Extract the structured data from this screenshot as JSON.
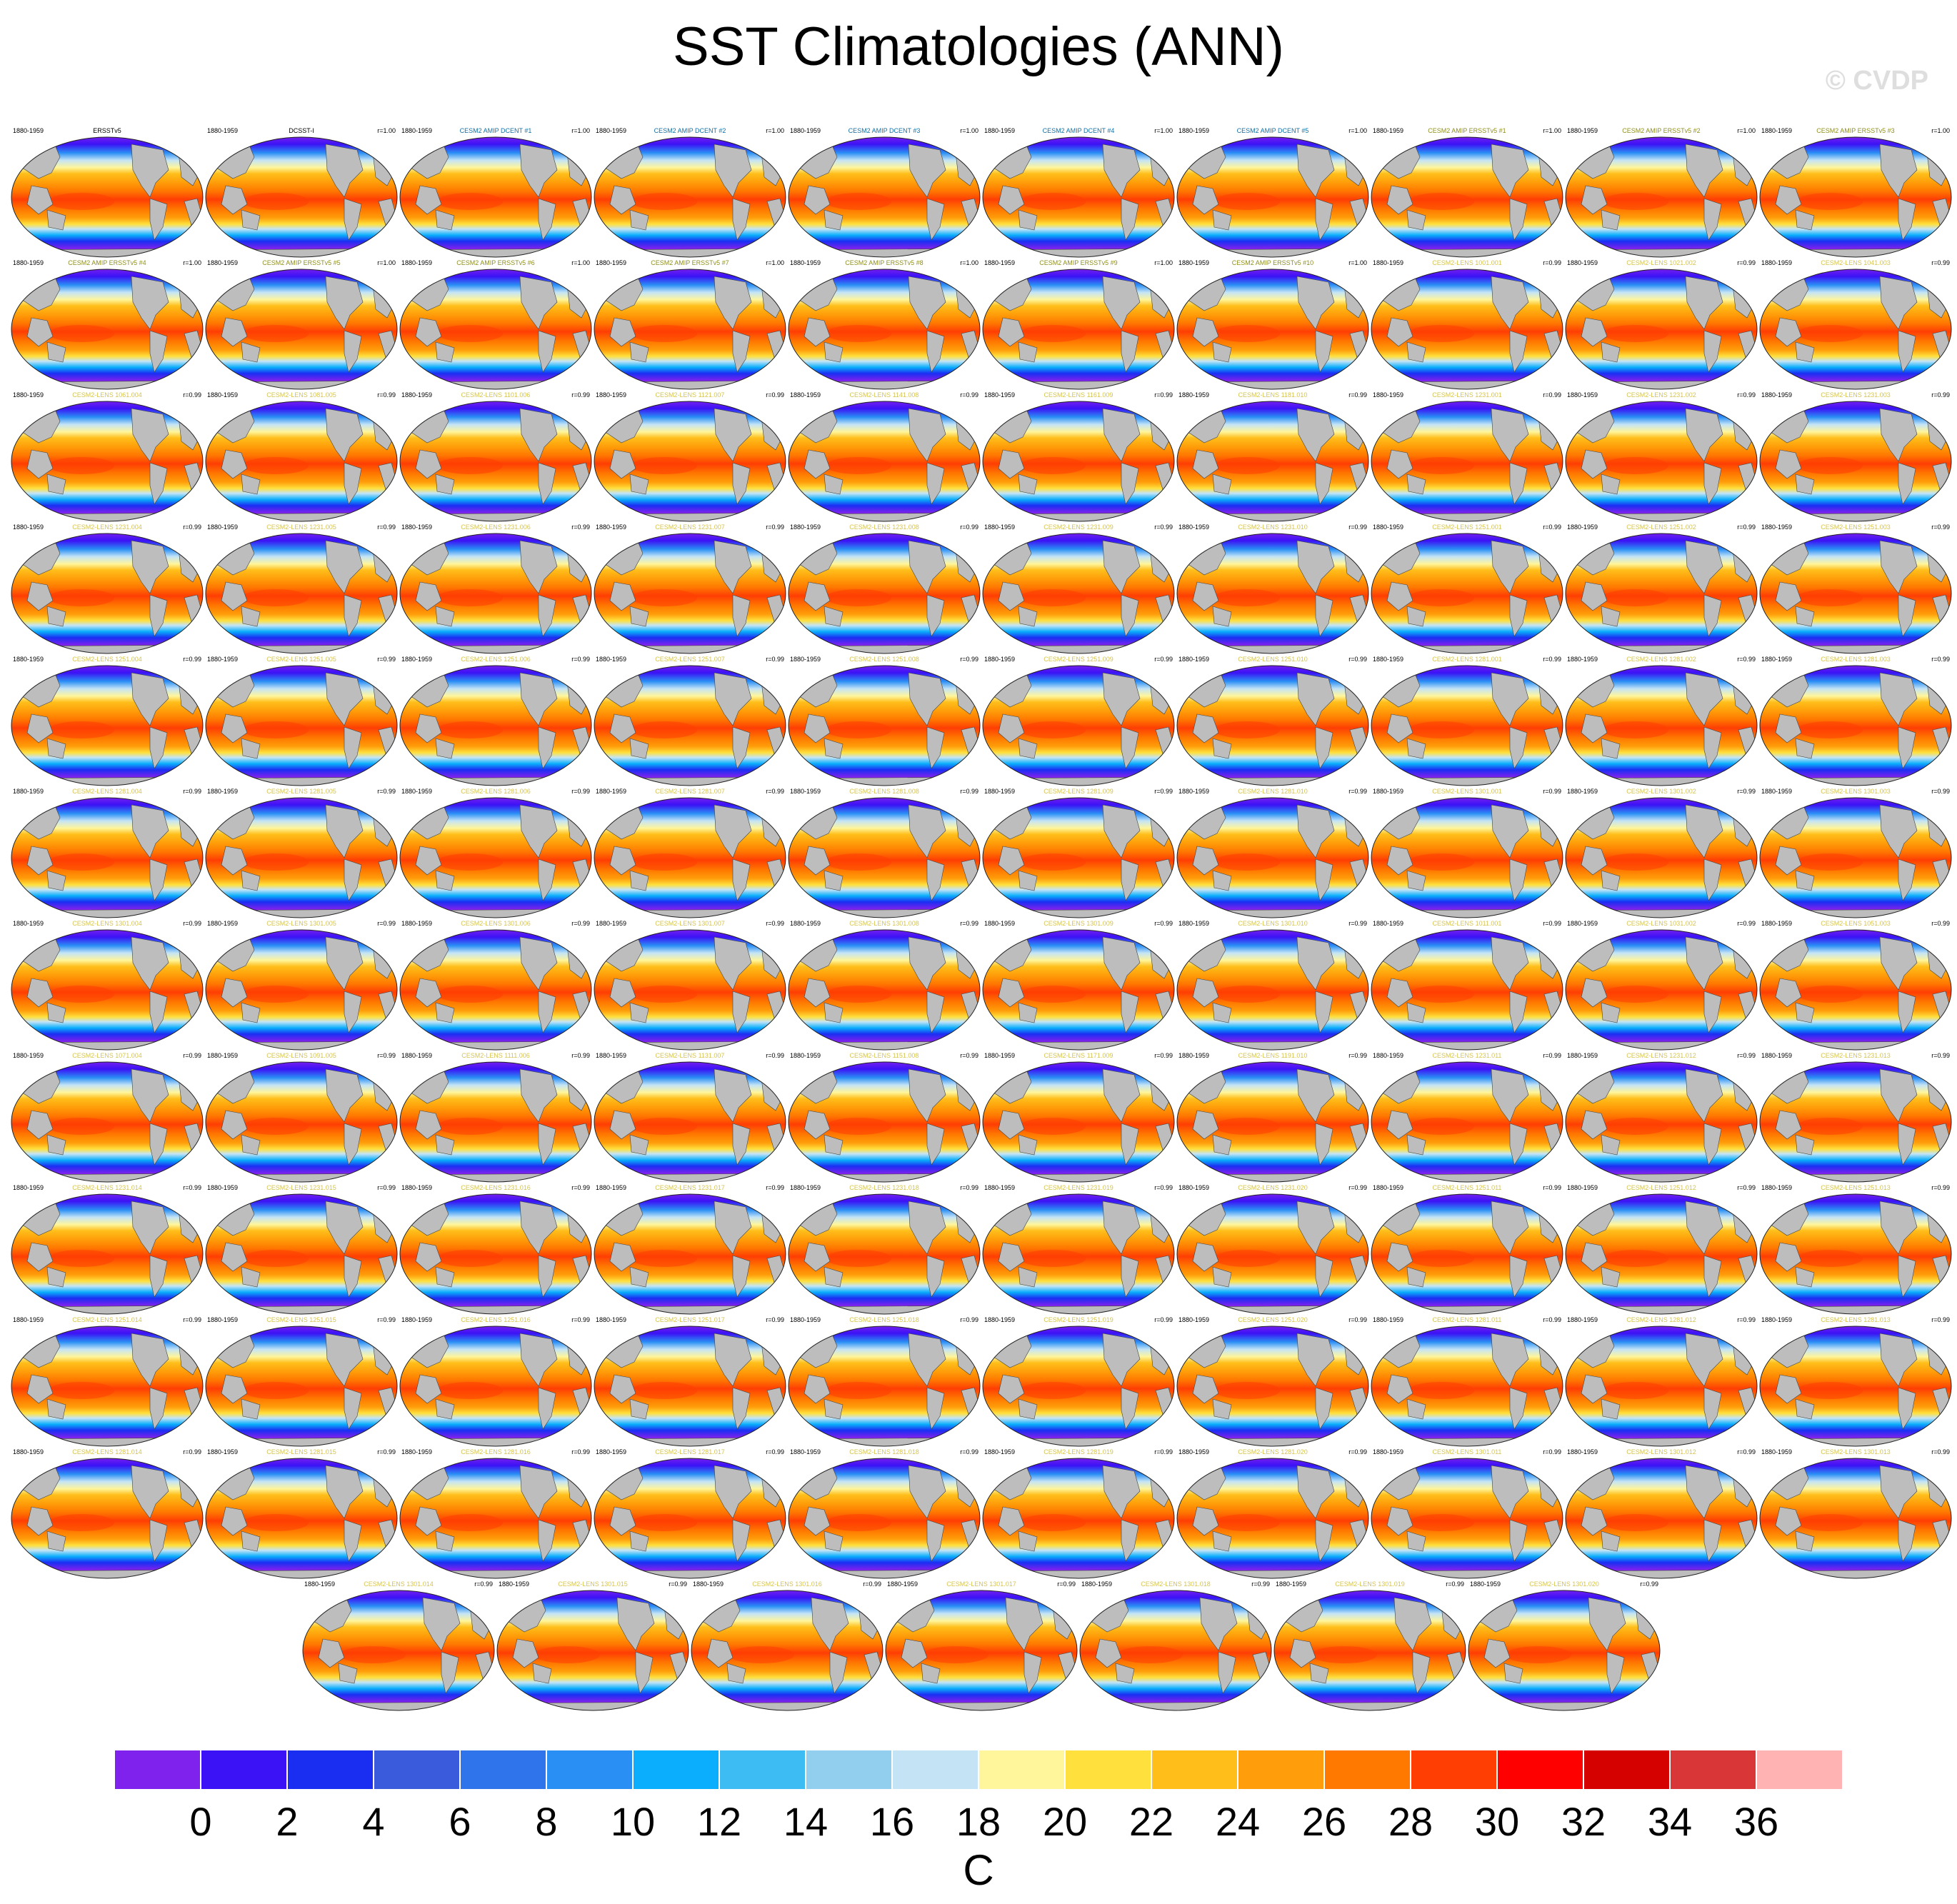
{
  "title": "SST Climatologies (ANN)",
  "watermark": "© CVDP",
  "units": "C",
  "colorbar": {
    "colors": [
      "#7f22ee",
      "#3b12f5",
      "#1a2ef2",
      "#3a5bdc",
      "#2f74ea",
      "#2a8ff5",
      "#0aaefc",
      "#3dbcf4",
      "#92cfef",
      "#c4e4f6",
      "#fff59a",
      "#ffe03d",
      "#ffbe1a",
      "#ff9e0a",
      "#ff7800",
      "#ff3e04",
      "#ff0000",
      "#d50000",
      "#d93737",
      "#ffb3b3"
    ],
    "ticks": [
      "0",
      "2",
      "4",
      "6",
      "8",
      "10",
      "12",
      "14",
      "16",
      "18",
      "20",
      "22",
      "24",
      "26",
      "28",
      "30",
      "32",
      "34",
      "36"
    ]
  },
  "label_colors": {
    "obs": "#000000",
    "dcent": "#1170a6",
    "ersst": "#8f8f20",
    "lens": "#d6c44e"
  },
  "panels": [
    {
      "period": "1880-1959",
      "name": "ERSSTv5",
      "r": "",
      "cat": "obs"
    },
    {
      "period": "1880-1959",
      "name": "DCSST-I",
      "r": "r=1.00",
      "cat": "obs"
    },
    {
      "period": "1880-1959",
      "name": "CESM2 AMIP DCENT #1",
      "r": "r=1.00",
      "cat": "dcent"
    },
    {
      "period": "1880-1959",
      "name": "CESM2 AMIP DCENT #2",
      "r": "r=1.00",
      "cat": "dcent"
    },
    {
      "period": "1880-1959",
      "name": "CESM2 AMIP DCENT #3",
      "r": "r=1.00",
      "cat": "dcent"
    },
    {
      "period": "1880-1959",
      "name": "CESM2 AMIP DCENT #4",
      "r": "r=1.00",
      "cat": "dcent"
    },
    {
      "period": "1880-1959",
      "name": "CESM2 AMIP DCENT #5",
      "r": "r=1.00",
      "cat": "dcent"
    },
    {
      "period": "1880-1959",
      "name": "CESM2 AMIP ERSSTv5 #1",
      "r": "r=1.00",
      "cat": "ersst"
    },
    {
      "period": "1880-1959",
      "name": "CESM2 AMIP ERSSTv5 #2",
      "r": "r=1.00",
      "cat": "ersst"
    },
    {
      "period": "1880-1959",
      "name": "CESM2 AMIP ERSSTv5 #3",
      "r": "r=1.00",
      "cat": "ersst"
    },
    {
      "period": "1880-1959",
      "name": "CESM2 AMIP ERSSTv5 #4",
      "r": "r=1.00",
      "cat": "ersst"
    },
    {
      "period": "1880-1959",
      "name": "CESM2 AMIP ERSSTv5 #5",
      "r": "r=1.00",
      "cat": "ersst"
    },
    {
      "period": "1880-1959",
      "name": "CESM2 AMIP ERSSTv5 #6",
      "r": "r=1.00",
      "cat": "ersst"
    },
    {
      "period": "1880-1959",
      "name": "CESM2 AMIP ERSSTv5 #7",
      "r": "r=1.00",
      "cat": "ersst"
    },
    {
      "period": "1880-1959",
      "name": "CESM2 AMIP ERSSTv5 #8",
      "r": "r=1.00",
      "cat": "ersst"
    },
    {
      "period": "1880-1959",
      "name": "CESM2 AMIP ERSSTv5 #9",
      "r": "r=1.00",
      "cat": "ersst"
    },
    {
      "period": "1880-1959",
      "name": "CESM2 AMIP ERSSTv5 #10",
      "r": "r=1.00",
      "cat": "ersst"
    },
    {
      "period": "1880-1959",
      "name": "CESM2-LENS 1001.001",
      "r": "r=0.99",
      "cat": "lens"
    },
    {
      "period": "1880-1959",
      "name": "CESM2-LENS 1021.002",
      "r": "r=0.99",
      "cat": "lens"
    },
    {
      "period": "1880-1959",
      "name": "CESM2-LENS 1041.003",
      "r": "r=0.99",
      "cat": "lens"
    },
    {
      "period": "1880-1959",
      "name": "CESM2-LENS 1061.004",
      "r": "r=0.99",
      "cat": "lens"
    },
    {
      "period": "1880-1959",
      "name": "CESM2-LENS 1081.005",
      "r": "r=0.99",
      "cat": "lens"
    },
    {
      "period": "1880-1959",
      "name": "CESM2-LENS 1101.006",
      "r": "r=0.99",
      "cat": "lens"
    },
    {
      "period": "1880-1959",
      "name": "CESM2-LENS 1121.007",
      "r": "r=0.99",
      "cat": "lens"
    },
    {
      "period": "1880-1959",
      "name": "CESM2-LENS 1141.008",
      "r": "r=0.99",
      "cat": "lens"
    },
    {
      "period": "1880-1959",
      "name": "CESM2-LENS 1161.009",
      "r": "r=0.99",
      "cat": "lens"
    },
    {
      "period": "1880-1959",
      "name": "CESM2-LENS 1181.010",
      "r": "r=0.99",
      "cat": "lens"
    },
    {
      "period": "1880-1959",
      "name": "CESM2-LENS 1231.001",
      "r": "r=0.99",
      "cat": "lens"
    },
    {
      "period": "1880-1959",
      "name": "CESM2-LENS 1231.002",
      "r": "r=0.99",
      "cat": "lens"
    },
    {
      "period": "1880-1959",
      "name": "CESM2-LENS 1231.003",
      "r": "r=0.99",
      "cat": "lens"
    },
    {
      "period": "1880-1959",
      "name": "CESM2-LENS 1231.004",
      "r": "r=0.99",
      "cat": "lens"
    },
    {
      "period": "1880-1959",
      "name": "CESM2-LENS 1231.005",
      "r": "r=0.99",
      "cat": "lens"
    },
    {
      "period": "1880-1959",
      "name": "CESM2-LENS 1231.006",
      "r": "r=0.99",
      "cat": "lens"
    },
    {
      "period": "1880-1959",
      "name": "CESM2-LENS 1231.007",
      "r": "r=0.99",
      "cat": "lens"
    },
    {
      "period": "1880-1959",
      "name": "CESM2-LENS 1231.008",
      "r": "r=0.99",
      "cat": "lens"
    },
    {
      "period": "1880-1959",
      "name": "CESM2-LENS 1231.009",
      "r": "r=0.99",
      "cat": "lens"
    },
    {
      "period": "1880-1959",
      "name": "CESM2-LENS 1231.010",
      "r": "r=0.99",
      "cat": "lens"
    },
    {
      "period": "1880-1959",
      "name": "CESM2-LENS 1251.001",
      "r": "r=0.99",
      "cat": "lens"
    },
    {
      "period": "1880-1959",
      "name": "CESM2-LENS 1251.002",
      "r": "r=0.99",
      "cat": "lens"
    },
    {
      "period": "1880-1959",
      "name": "CESM2-LENS 1251.003",
      "r": "r=0.99",
      "cat": "lens"
    },
    {
      "period": "1880-1959",
      "name": "CESM2-LENS 1251.004",
      "r": "r=0.99",
      "cat": "lens"
    },
    {
      "period": "1880-1959",
      "name": "CESM2-LENS 1251.005",
      "r": "r=0.99",
      "cat": "lens"
    },
    {
      "period": "1880-1959",
      "name": "CESM2-LENS 1251.006",
      "r": "r=0.99",
      "cat": "lens"
    },
    {
      "period": "1880-1959",
      "name": "CESM2-LENS 1251.007",
      "r": "r=0.99",
      "cat": "lens"
    },
    {
      "period": "1880-1959",
      "name": "CESM2-LENS 1251.008",
      "r": "r=0.99",
      "cat": "lens"
    },
    {
      "period": "1880-1959",
      "name": "CESM2-LENS 1251.009",
      "r": "r=0.99",
      "cat": "lens"
    },
    {
      "period": "1880-1959",
      "name": "CESM2-LENS 1251.010",
      "r": "r=0.99",
      "cat": "lens"
    },
    {
      "period": "1880-1959",
      "name": "CESM2-LENS 1281.001",
      "r": "r=0.99",
      "cat": "lens"
    },
    {
      "period": "1880-1959",
      "name": "CESM2-LENS 1281.002",
      "r": "r=0.99",
      "cat": "lens"
    },
    {
      "period": "1880-1959",
      "name": "CESM2-LENS 1281.003",
      "r": "r=0.99",
      "cat": "lens"
    },
    {
      "period": "1880-1959",
      "name": "CESM2-LENS 1281.004",
      "r": "r=0.99",
      "cat": "lens"
    },
    {
      "period": "1880-1959",
      "name": "CESM2-LENS 1281.005",
      "r": "r=0.99",
      "cat": "lens"
    },
    {
      "period": "1880-1959",
      "name": "CESM2-LENS 1281.006",
      "r": "r=0.99",
      "cat": "lens"
    },
    {
      "period": "1880-1959",
      "name": "CESM2-LENS 1281.007",
      "r": "r=0.99",
      "cat": "lens"
    },
    {
      "period": "1880-1959",
      "name": "CESM2-LENS 1281.008",
      "r": "r=0.99",
      "cat": "lens"
    },
    {
      "period": "1880-1959",
      "name": "CESM2-LENS 1281.009",
      "r": "r=0.99",
      "cat": "lens"
    },
    {
      "period": "1880-1959",
      "name": "CESM2-LENS 1281.010",
      "r": "r=0.99",
      "cat": "lens"
    },
    {
      "period": "1880-1959",
      "name": "CESM2-LENS 1301.001",
      "r": "r=0.99",
      "cat": "lens"
    },
    {
      "period": "1880-1959",
      "name": "CESM2-LENS 1301.002",
      "r": "r=0.99",
      "cat": "lens"
    },
    {
      "period": "1880-1959",
      "name": "CESM2-LENS 1301.003",
      "r": "r=0.99",
      "cat": "lens"
    },
    {
      "period": "1880-1959",
      "name": "CESM2-LENS 1301.004",
      "r": "r=0.99",
      "cat": "lens"
    },
    {
      "period": "1880-1959",
      "name": "CESM2-LENS 1301.005",
      "r": "r=0.99",
      "cat": "lens"
    },
    {
      "period": "1880-1959",
      "name": "CESM2-LENS 1301.006",
      "r": "r=0.99",
      "cat": "lens"
    },
    {
      "period": "1880-1959",
      "name": "CESM2-LENS 1301.007",
      "r": "r=0.99",
      "cat": "lens"
    },
    {
      "period": "1880-1959",
      "name": "CESM2-LENS 1301.008",
      "r": "r=0.99",
      "cat": "lens"
    },
    {
      "period": "1880-1959",
      "name": "CESM2-LENS 1301.009",
      "r": "r=0.99",
      "cat": "lens"
    },
    {
      "period": "1880-1959",
      "name": "CESM2-LENS 1301.010",
      "r": "r=0.99",
      "cat": "lens"
    },
    {
      "period": "1880-1959",
      "name": "CESM2-LENS 1011.001",
      "r": "r=0.99",
      "cat": "lens"
    },
    {
      "period": "1880-1959",
      "name": "CESM2-LENS 1031.002",
      "r": "r=0.99",
      "cat": "lens"
    },
    {
      "period": "1880-1959",
      "name": "CESM2-LENS 1051.003",
      "r": "r=0.99",
      "cat": "lens"
    },
    {
      "period": "1880-1959",
      "name": "CESM2-LENS 1071.004",
      "r": "r=0.99",
      "cat": "lens"
    },
    {
      "period": "1880-1959",
      "name": "CESM2-LENS 1091.005",
      "r": "r=0.99",
      "cat": "lens"
    },
    {
      "period": "1880-1959",
      "name": "CESM2-LENS 1111.006",
      "r": "r=0.99",
      "cat": "lens"
    },
    {
      "period": "1880-1959",
      "name": "CESM2-LENS 1131.007",
      "r": "r=0.99",
      "cat": "lens"
    },
    {
      "period": "1880-1959",
      "name": "CESM2-LENS 1151.008",
      "r": "r=0.99",
      "cat": "lens"
    },
    {
      "period": "1880-1959",
      "name": "CESM2-LENS 1171.009",
      "r": "r=0.99",
      "cat": "lens"
    },
    {
      "period": "1880-1959",
      "name": "CESM2-LENS 1191.010",
      "r": "r=0.99",
      "cat": "lens"
    },
    {
      "period": "1880-1959",
      "name": "CESM2-LENS 1231.011",
      "r": "r=0.99",
      "cat": "lens"
    },
    {
      "period": "1880-1959",
      "name": "CESM2-LENS 1231.012",
      "r": "r=0.99",
      "cat": "lens"
    },
    {
      "period": "1880-1959",
      "name": "CESM2-LENS 1231.013",
      "r": "r=0.99",
      "cat": "lens"
    },
    {
      "period": "1880-1959",
      "name": "CESM2-LENS 1231.014",
      "r": "r=0.99",
      "cat": "lens"
    },
    {
      "period": "1880-1959",
      "name": "CESM2-LENS 1231.015",
      "r": "r=0.99",
      "cat": "lens"
    },
    {
      "period": "1880-1959",
      "name": "CESM2-LENS 1231.016",
      "r": "r=0.99",
      "cat": "lens"
    },
    {
      "period": "1880-1959",
      "name": "CESM2-LENS 1231.017",
      "r": "r=0.99",
      "cat": "lens"
    },
    {
      "period": "1880-1959",
      "name": "CESM2-LENS 1231.018",
      "r": "r=0.99",
      "cat": "lens"
    },
    {
      "period": "1880-1959",
      "name": "CESM2-LENS 1231.019",
      "r": "r=0.99",
      "cat": "lens"
    },
    {
      "period": "1880-1959",
      "name": "CESM2-LENS 1231.020",
      "r": "r=0.99",
      "cat": "lens"
    },
    {
      "period": "1880-1959",
      "name": "CESM2-LENS 1251.011",
      "r": "r=0.99",
      "cat": "lens"
    },
    {
      "period": "1880-1959",
      "name": "CESM2-LENS 1251.012",
      "r": "r=0.99",
      "cat": "lens"
    },
    {
      "period": "1880-1959",
      "name": "CESM2-LENS 1251.013",
      "r": "r=0.99",
      "cat": "lens"
    },
    {
      "period": "1880-1959",
      "name": "CESM2-LENS 1251.014",
      "r": "r=0.99",
      "cat": "lens"
    },
    {
      "period": "1880-1959",
      "name": "CESM2-LENS 1251.015",
      "r": "r=0.99",
      "cat": "lens"
    },
    {
      "period": "1880-1959",
      "name": "CESM2-LENS 1251.016",
      "r": "r=0.99",
      "cat": "lens"
    },
    {
      "period": "1880-1959",
      "name": "CESM2-LENS 1251.017",
      "r": "r=0.99",
      "cat": "lens"
    },
    {
      "period": "1880-1959",
      "name": "CESM2-LENS 1251.018",
      "r": "r=0.99",
      "cat": "lens"
    },
    {
      "period": "1880-1959",
      "name": "CESM2-LENS 1251.019",
      "r": "r=0.99",
      "cat": "lens"
    },
    {
      "period": "1880-1959",
      "name": "CESM2-LENS 1251.020",
      "r": "r=0.99",
      "cat": "lens"
    },
    {
      "period": "1880-1959",
      "name": "CESM2-LENS 1281.011",
      "r": "r=0.99",
      "cat": "lens"
    },
    {
      "period": "1880-1959",
      "name": "CESM2-LENS 1281.012",
      "r": "r=0.99",
      "cat": "lens"
    },
    {
      "period": "1880-1959",
      "name": "CESM2-LENS 1281.013",
      "r": "r=0.99",
      "cat": "lens"
    },
    {
      "period": "1880-1959",
      "name": "CESM2-LENS 1281.014",
      "r": "r=0.99",
      "cat": "lens"
    },
    {
      "period": "1880-1959",
      "name": "CESM2-LENS 1281.015",
      "r": "r=0.99",
      "cat": "lens"
    },
    {
      "period": "1880-1959",
      "name": "CESM2-LENS 1281.016",
      "r": "r=0.99",
      "cat": "lens"
    },
    {
      "period": "1880-1959",
      "name": "CESM2-LENS 1281.017",
      "r": "r=0.99",
      "cat": "lens"
    },
    {
      "period": "1880-1959",
      "name": "CESM2-LENS 1281.018",
      "r": "r=0.99",
      "cat": "lens"
    },
    {
      "period": "1880-1959",
      "name": "CESM2-LENS 1281.019",
      "r": "r=0.99",
      "cat": "lens"
    },
    {
      "period": "1880-1959",
      "name": "CESM2-LENS 1281.020",
      "r": "r=0.99",
      "cat": "lens"
    },
    {
      "period": "1880-1959",
      "name": "CESM2-LENS 1301.011",
      "r": "r=0.99",
      "cat": "lens"
    },
    {
      "period": "1880-1959",
      "name": "CESM2-LENS 1301.012",
      "r": "r=0.99",
      "cat": "lens"
    },
    {
      "period": "1880-1959",
      "name": "CESM2-LENS 1301.013",
      "r": "r=0.99",
      "cat": "lens"
    },
    {
      "period": "1880-1959",
      "name": "CESM2-LENS 1301.014",
      "r": "r=0.99",
      "cat": "lens"
    },
    {
      "period": "1880-1959",
      "name": "CESM2-LENS 1301.015",
      "r": "r=0.99",
      "cat": "lens"
    },
    {
      "period": "1880-1959",
      "name": "CESM2-LENS 1301.016",
      "r": "r=0.99",
      "cat": "lens"
    },
    {
      "period": "1880-1959",
      "name": "CESM2-LENS 1301.017",
      "r": "r=0.99",
      "cat": "lens"
    },
    {
      "period": "1880-1959",
      "name": "CESM2-LENS 1301.018",
      "r": "r=0.99",
      "cat": "lens"
    },
    {
      "period": "1880-1959",
      "name": "CESM2-LENS 1301.019",
      "r": "r=0.99",
      "cat": "lens"
    },
    {
      "period": "1880-1959",
      "name": "CESM2-LENS 1301.020",
      "r": "r=0.99",
      "cat": "lens"
    }
  ]
}
